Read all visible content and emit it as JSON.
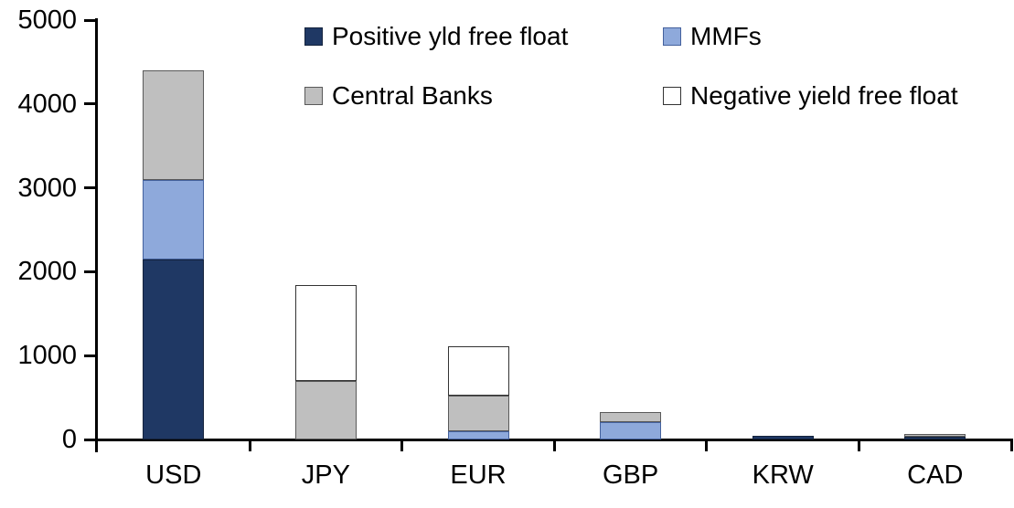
{
  "chart_data": {
    "type": "bar",
    "stacked": true,
    "title": "",
    "xlabel": "",
    "ylabel": "",
    "categories": [
      "USD",
      "JPY",
      "EUR",
      "GBP",
      "KRW",
      "CAD"
    ],
    "series": [
      {
        "name": "Positive yld free float",
        "color": "#1F3864",
        "border_color": "#14233D",
        "values": [
          2150,
          0,
          0,
          0,
          45,
          30
        ]
      },
      {
        "name": "MMFs",
        "color": "#8EA9DB",
        "border_color": "#44619D",
        "values": [
          940,
          0,
          100,
          210,
          0,
          0
        ]
      },
      {
        "name": "Central Banks",
        "color": "#BFBFBF",
        "border_color": "#595959",
        "values": [
          1310,
          700,
          425,
          120,
          0,
          30
        ]
      },
      {
        "name": "Negative yield free float",
        "color": "#FFFFFF",
        "border_color": "#333333",
        "values": [
          0,
          1140,
          585,
          0,
          0,
          0
        ]
      }
    ],
    "totals": {
      "USD": 4400,
      "JPY": 1840,
      "EUR": 1110,
      "GBP": 330,
      "KRW": 45,
      "CAD": 60
    },
    "ylim": [
      0,
      5000
    ],
    "yticks": [
      0,
      1000,
      2000,
      3000,
      4000,
      5000
    ],
    "grid": false,
    "legend_position": "top, two rows, two columns",
    "legend_order": [
      "Positive yld free float",
      "MMFs",
      "Central Banks",
      "Negative yield free float"
    ],
    "axis_color": "#000000",
    "background_color": "#FFFFFF"
  }
}
